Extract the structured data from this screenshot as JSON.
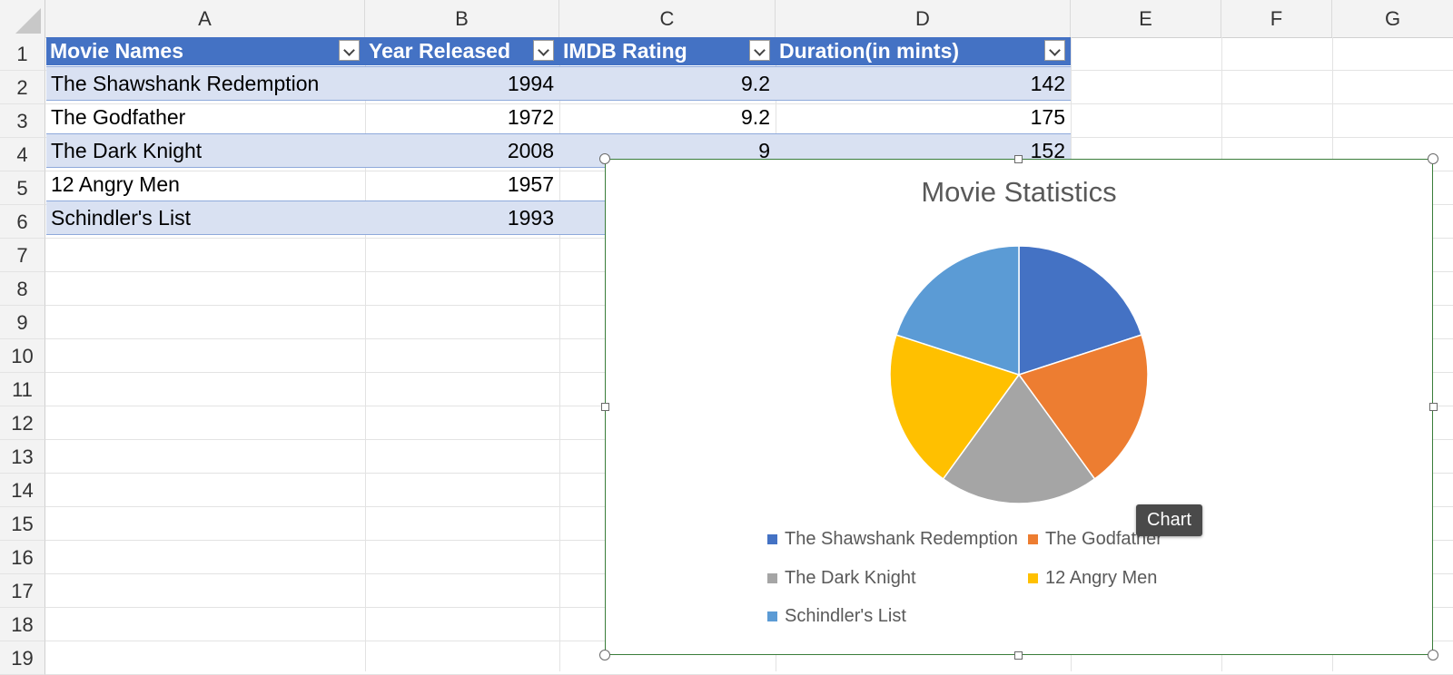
{
  "columns": [
    "A",
    "B",
    "C",
    "D",
    "E",
    "F",
    "G"
  ],
  "rows": [
    "1",
    "2",
    "3",
    "4",
    "5",
    "6",
    "7",
    "8",
    "9",
    "10",
    "11",
    "12",
    "13",
    "14",
    "15",
    "16",
    "17",
    "18",
    "19"
  ],
  "table": {
    "headers": [
      "Movie Names",
      "Year Released",
      "IMDB Rating",
      "Duration(in mints)"
    ],
    "data": [
      [
        "The Shawshank Redemption",
        "1994",
        "9.2",
        "142"
      ],
      [
        "The Godfather",
        "1972",
        "9.2",
        "175"
      ],
      [
        "The Dark Knight",
        "2008",
        "9",
        "152"
      ],
      [
        "12 Angry Men",
        "1957",
        "",
        ""
      ],
      [
        "Schindler's List",
        "1993",
        "",
        ""
      ]
    ]
  },
  "chart_data": {
    "type": "pie",
    "title": "Movie Statistics",
    "categories": [
      "The Shawshank Redemption",
      "The Godfather",
      "The Dark Knight",
      "12 Angry Men",
      "Schindler's List"
    ],
    "values": [
      20,
      20,
      20,
      20,
      20
    ],
    "colors": [
      "#4472c4",
      "#ed7d31",
      "#a5a5a5",
      "#ffc000",
      "#5b9bd5"
    ],
    "legend_position": "bottom"
  },
  "tooltip": "Chart",
  "colors": {
    "table_header": "#4472c4",
    "band": "#d9e1f2",
    "chart_border": "#3a7d3a"
  },
  "icons": {
    "filter": "chevron-down-icon",
    "select_all": "select-all-triangle-icon"
  }
}
